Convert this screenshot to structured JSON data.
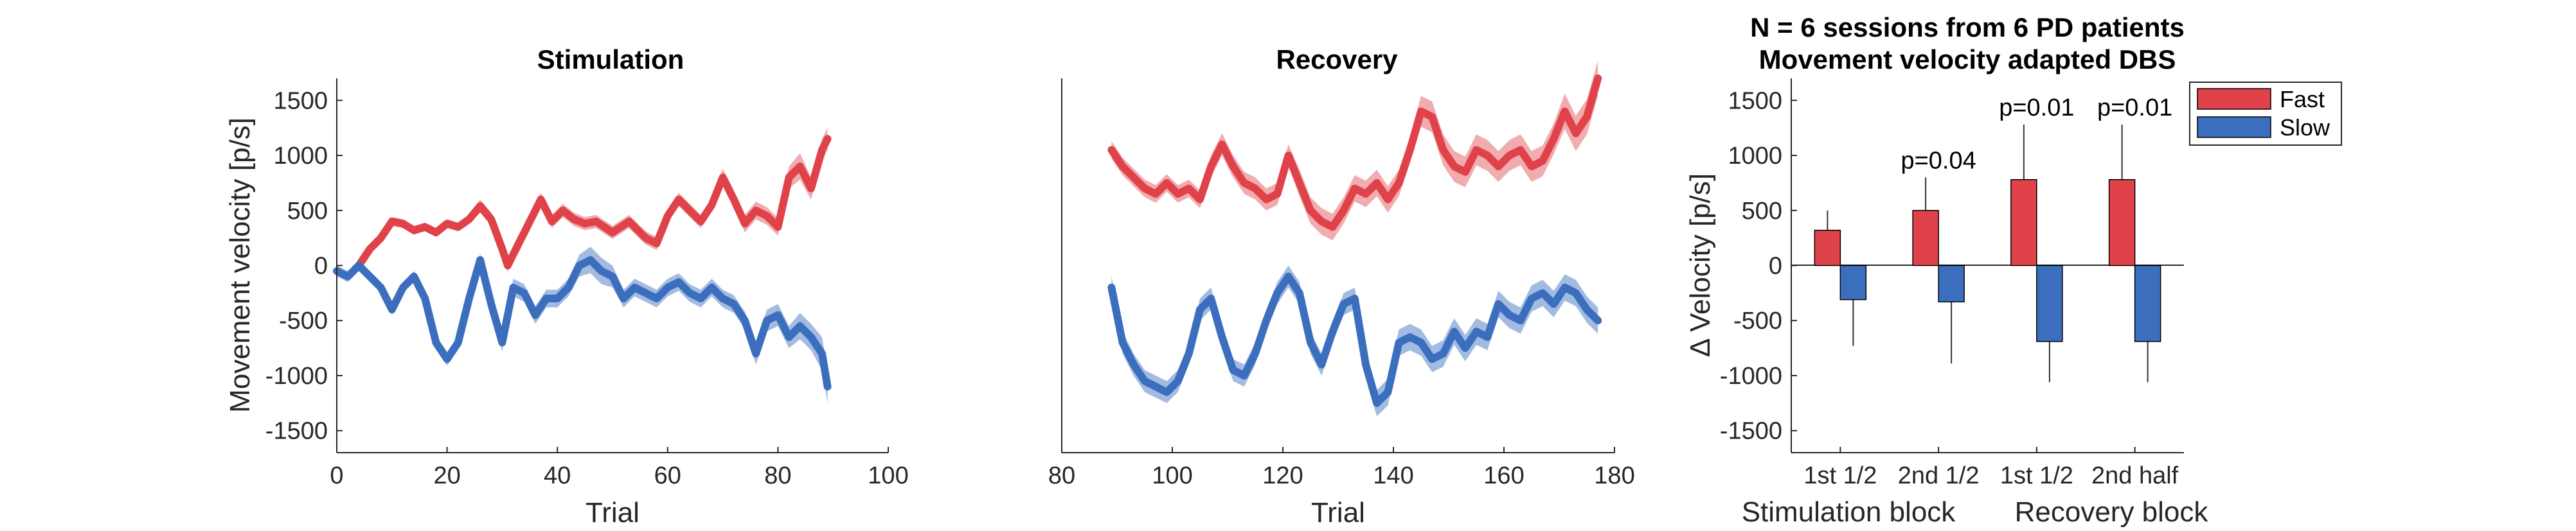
{
  "figure": {
    "fast_color": "#e0424a",
    "slow_color": "#3b6fbe",
    "fast_band_color": "#ef9ea1",
    "slow_band_color": "#94afdc"
  },
  "chart_data": [
    {
      "type": "line",
      "title": "Stimulation",
      "xlabel": "Trial",
      "ylabel": "Movement velocity [p/s]",
      "xlim": [
        0,
        100
      ],
      "ylim": [
        -1700,
        1700
      ],
      "xticks": [
        0,
        20,
        40,
        60,
        80,
        100
      ],
      "yticks": [
        -1500,
        -1000,
        -500,
        0,
        500,
        1000,
        1500
      ],
      "series": [
        {
          "key": "fast",
          "x": [
            4,
            6,
            8,
            10,
            12,
            14,
            16,
            18,
            20,
            22,
            24,
            26,
            28,
            30,
            31,
            33,
            35,
            37,
            39,
            41,
            43,
            45,
            47,
            50,
            53,
            56,
            58,
            60,
            62,
            64,
            66,
            68,
            70,
            72,
            74,
            76,
            78,
            80,
            82,
            84,
            86,
            88,
            89
          ],
          "y": [
            0,
            150,
            250,
            400,
            380,
            320,
            350,
            300,
            380,
            350,
            420,
            540,
            420,
            150,
            0,
            200,
            400,
            600,
            400,
            500,
            420,
            380,
            400,
            300,
            400,
            250,
            200,
            450,
            600,
            500,
            400,
            550,
            800,
            600,
            380,
            500,
            450,
            350,
            800,
            900,
            700,
            1050,
            1150
          ],
          "band": [
            40,
            40,
            40,
            40,
            40,
            40,
            40,
            40,
            40,
            40,
            40,
            60,
            60,
            60,
            60,
            60,
            60,
            60,
            60,
            60,
            60,
            60,
            60,
            60,
            60,
            60,
            60,
            60,
            60,
            60,
            60,
            60,
            80,
            80,
            80,
            80,
            80,
            80,
            100,
            120,
            100,
            100,
            100
          ]
        },
        {
          "key": "slow",
          "x": [
            0,
            2,
            4,
            6,
            8,
            10,
            12,
            14,
            16,
            18,
            20,
            22,
            24,
            26,
            28,
            30,
            32,
            34,
            36,
            38,
            40,
            42,
            44,
            46,
            48,
            50,
            52,
            54,
            56,
            58,
            60,
            62,
            64,
            66,
            68,
            70,
            72,
            74,
            76,
            78,
            80,
            82,
            84,
            86,
            88,
            89
          ],
          "y": [
            -50,
            -100,
            0,
            -100,
            -200,
            -400,
            -200,
            -100,
            -300,
            -700,
            -850,
            -700,
            -300,
            50,
            -350,
            -700,
            -200,
            -250,
            -450,
            -300,
            -300,
            -200,
            0,
            50,
            -50,
            -100,
            -300,
            -200,
            -250,
            -300,
            -200,
            -150,
            -250,
            -300,
            -200,
            -300,
            -350,
            -500,
            -800,
            -500,
            -450,
            -650,
            -550,
            -650,
            -800,
            -1100
          ],
          "band": [
            50,
            50,
            50,
            50,
            50,
            50,
            50,
            50,
            50,
            60,
            60,
            60,
            60,
            60,
            60,
            80,
            80,
            80,
            80,
            80,
            80,
            80,
            100,
            120,
            120,
            100,
            80,
            80,
            80,
            80,
            80,
            80,
            80,
            80,
            80,
            80,
            80,
            80,
            100,
            100,
            100,
            100,
            120,
            120,
            150,
            150
          ]
        }
      ]
    },
    {
      "type": "line",
      "title": "Recovery",
      "xlabel": "Trial",
      "ylabel": "",
      "xlim": [
        80,
        180
      ],
      "ylim": [
        -1700,
        1700
      ],
      "xticks": [
        80,
        100,
        120,
        140,
        160,
        180
      ],
      "yticks": [],
      "series": [
        {
          "key": "fast",
          "x": [
            89,
            91,
            93,
            95,
            97,
            99,
            101,
            103,
            105,
            107,
            109,
            111,
            113,
            115,
            117,
            119,
            121,
            123,
            125,
            127,
            129,
            131,
            133,
            135,
            137,
            139,
            141,
            143,
            145,
            147,
            149,
            151,
            153,
            155,
            157,
            159,
            161,
            163,
            165,
            167,
            169,
            171,
            173,
            175,
            177
          ],
          "y": [
            1050,
            900,
            800,
            700,
            650,
            750,
            650,
            700,
            600,
            900,
            1100,
            900,
            750,
            700,
            600,
            650,
            1000,
            750,
            500,
            400,
            350,
            500,
            700,
            650,
            750,
            600,
            750,
            1050,
            1400,
            1350,
            1050,
            900,
            850,
            1050,
            1000,
            900,
            1000,
            1050,
            900,
            950,
            1150,
            1400,
            1200,
            1350,
            1700
          ],
          "band": [
            80,
            80,
            80,
            80,
            80,
            80,
            80,
            80,
            80,
            100,
            100,
            100,
            100,
            100,
            100,
            100,
            100,
            120,
            120,
            120,
            120,
            120,
            120,
            120,
            120,
            120,
            120,
            120,
            140,
            140,
            140,
            140,
            140,
            140,
            140,
            140,
            140,
            140,
            140,
            140,
            140,
            160,
            160,
            160,
            160
          ]
        },
        {
          "key": "slow",
          "x": [
            89,
            91,
            93,
            95,
            97,
            99,
            101,
            103,
            105,
            107,
            109,
            111,
            113,
            115,
            117,
            119,
            121,
            123,
            125,
            127,
            129,
            131,
            133,
            135,
            137,
            139,
            141,
            143,
            145,
            147,
            149,
            151,
            153,
            155,
            157,
            159,
            161,
            163,
            165,
            167,
            169,
            171,
            173,
            175,
            177
          ],
          "y": [
            -200,
            -700,
            -900,
            -1050,
            -1100,
            -1150,
            -1050,
            -800,
            -400,
            -300,
            -650,
            -950,
            -1000,
            -800,
            -500,
            -250,
            -100,
            -250,
            -700,
            -900,
            -600,
            -350,
            -300,
            -900,
            -1250,
            -1150,
            -700,
            -650,
            -700,
            -850,
            -800,
            -600,
            -750,
            -600,
            -650,
            -350,
            -450,
            -500,
            -300,
            -250,
            -350,
            -200,
            -250,
            -400,
            -500
          ],
          "band": [
            100,
            100,
            100,
            100,
            100,
            100,
            100,
            100,
            100,
            100,
            100,
            100,
            100,
            100,
            100,
            100,
            100,
            100,
            100,
            100,
            100,
            100,
            100,
            120,
            120,
            120,
            120,
            120,
            120,
            120,
            120,
            120,
            120,
            120,
            120,
            120,
            120,
            120,
            120,
            120,
            120,
            120,
            120,
            120,
            120
          ]
        }
      ]
    },
    {
      "type": "bar",
      "title_lines": [
        "N = 6 sessions from 6 PD patients",
        "Movement velocity adapted DBS"
      ],
      "ylabel": "Δ Velocity [p/s]",
      "ylim": [
        -1700,
        1700
      ],
      "yticks": [
        -1500,
        -1000,
        -500,
        0,
        500,
        1000,
        1500
      ],
      "categories": [
        "1st 1/2",
        "2nd 1/2",
        "1st 1/2",
        "2nd half"
      ],
      "group_labels": [
        "Stimulation block",
        "Recovery block"
      ],
      "legend": [
        "Fast",
        "Slow"
      ],
      "legend_position": "outside top-right",
      "series": [
        {
          "name": "Fast",
          "key": "fast",
          "values": [
            320,
            500,
            780,
            780
          ],
          "errors": [
            180,
            300,
            500,
            500
          ]
        },
        {
          "name": "Slow",
          "key": "slow",
          "values": [
            -310,
            -330,
            -690,
            -690
          ],
          "errors": [
            420,
            560,
            370,
            370
          ]
        }
      ],
      "annotations": [
        "",
        "p=0.04",
        "p=0.01",
        "p=0.01"
      ]
    }
  ]
}
